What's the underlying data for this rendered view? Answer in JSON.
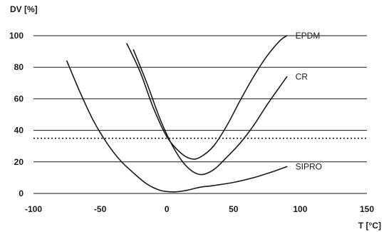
{
  "chart_data": {
    "type": "line",
    "title": "",
    "xlabel": "T [°C]",
    "ylabel": "DV [%]",
    "xlim": [
      -100,
      150
    ],
    "ylim": [
      0,
      100
    ],
    "xticks": [
      -100,
      -50,
      0,
      50,
      100,
      150
    ],
    "yticks": [
      0,
      20,
      40,
      60,
      80,
      100
    ],
    "grid": "horizontal",
    "legend": "inline labels at right end of curves",
    "reference_line": {
      "y": 35,
      "style": "dotted"
    },
    "series": [
      {
        "name": "EPDM",
        "x": [
          -30,
          -20,
          -10,
          0,
          10,
          18,
          25,
          35,
          45,
          55,
          65,
          75,
          85,
          90
        ],
        "y": [
          95,
          77,
          54,
          36,
          26,
          22,
          23,
          30,
          43,
          59,
          74,
          87,
          97,
          100
        ]
      },
      {
        "name": "CR",
        "x": [
          -25,
          -15,
          -5,
          5,
          15,
          25,
          35,
          45,
          55,
          65,
          75,
          85,
          90
        ],
        "y": [
          91,
          70,
          47,
          29,
          17,
          12,
          15,
          23,
          32,
          43,
          56,
          68,
          74
        ]
      },
      {
        "name": "SIPRO",
        "x": [
          -75,
          -65,
          -55,
          -45,
          -35,
          -25,
          -15,
          -5,
          5,
          15,
          25,
          35,
          50,
          65,
          80,
          90
        ],
        "y": [
          84,
          64,
          46,
          32,
          21,
          13,
          6,
          2,
          1,
          2,
          4,
          5,
          7,
          10,
          14,
          17
        ]
      }
    ]
  },
  "style": {
    "line_color": "#1a1a1a",
    "grid_color": "#1a1a1a"
  }
}
